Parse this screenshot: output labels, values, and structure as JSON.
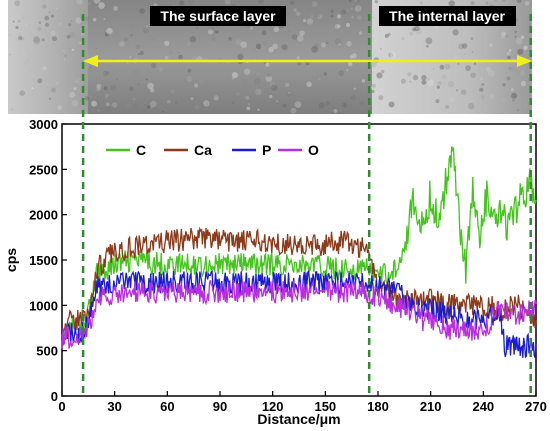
{
  "micrograph": {
    "label_surface": "The surface layer",
    "label_internal": "The internal layer"
  },
  "chart_data": {
    "type": "line",
    "title": "",
    "xlabel": "Distance/μm",
    "ylabel": "cps",
    "xlim": [
      0,
      270
    ],
    "ylim": [
      0,
      3000
    ],
    "xticks": [
      0,
      30,
      60,
      90,
      120,
      150,
      180,
      210,
      240,
      270
    ],
    "yticks": [
      0,
      500,
      1000,
      1500,
      2000,
      2500,
      3000
    ],
    "grid": false,
    "legend": "top-left",
    "markers_x": [
      12,
      175,
      267
    ],
    "series": [
      {
        "name": "C",
        "color": "#44c41c",
        "x": [
          0,
          10,
          15,
          20,
          30,
          40,
          60,
          80,
          100,
          120,
          140,
          160,
          170,
          175,
          180,
          190,
          195,
          200,
          205,
          210,
          215,
          220,
          223,
          226,
          230,
          234,
          238,
          242,
          246,
          250,
          254,
          258,
          262,
          266,
          270
        ],
        "y": [
          700,
          800,
          900,
          1350,
          1450,
          1500,
          1450,
          1450,
          1450,
          1450,
          1450,
          1400,
          1400,
          1400,
          1300,
          1400,
          1700,
          2100,
          1850,
          2200,
          1900,
          2500,
          2820,
          2000,
          1400,
          2300,
          1700,
          2200,
          1900,
          2000,
          1850,
          2000,
          2200,
          2350,
          2250
        ]
      },
      {
        "name": "Ca",
        "color": "#8b3a1a",
        "x": [
          0,
          10,
          15,
          20,
          30,
          40,
          60,
          80,
          100,
          120,
          140,
          160,
          170,
          175,
          180,
          190,
          200,
          210,
          220,
          230,
          240,
          250,
          260,
          270
        ],
        "y": [
          780,
          850,
          900,
          1400,
          1600,
          1650,
          1700,
          1750,
          1700,
          1700,
          1650,
          1700,
          1650,
          1600,
          1200,
          1100,
          1050,
          1050,
          1000,
          1000,
          1000,
          950,
          1000,
          850
        ]
      },
      {
        "name": "P",
        "color": "#1c1ccf",
        "x": [
          0,
          10,
          15,
          20,
          30,
          40,
          60,
          80,
          100,
          120,
          140,
          160,
          170,
          175,
          180,
          190,
          200,
          210,
          220,
          230,
          240,
          250,
          252,
          260,
          270
        ],
        "y": [
          700,
          700,
          800,
          1200,
          1250,
          1250,
          1250,
          1250,
          1250,
          1250,
          1250,
          1250,
          1250,
          1200,
          1200,
          1150,
          1000,
          950,
          900,
          850,
          850,
          900,
          550,
          550,
          550
        ]
      },
      {
        "name": "O",
        "color": "#b82ee0",
        "x": [
          0,
          10,
          15,
          20,
          30,
          40,
          60,
          80,
          100,
          120,
          140,
          160,
          170,
          175,
          180,
          190,
          200,
          210,
          220,
          230,
          240,
          250,
          260,
          270
        ],
        "y": [
          650,
          650,
          750,
          1100,
          1100,
          1150,
          1150,
          1150,
          1150,
          1150,
          1150,
          1150,
          1150,
          1100,
          1100,
          1000,
          900,
          800,
          750,
          700,
          750,
          950,
          900,
          950
        ]
      }
    ]
  }
}
